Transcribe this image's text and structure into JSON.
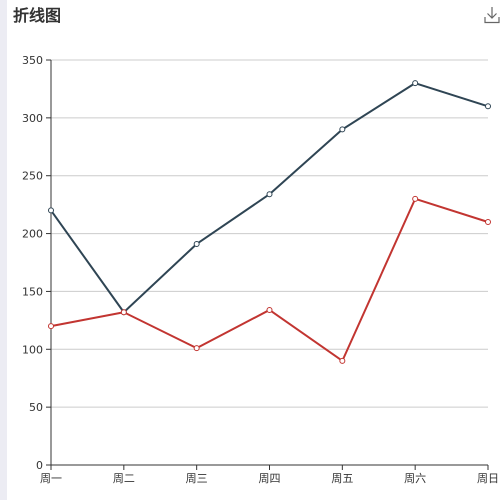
{
  "header": {
    "title": "折线图",
    "save_icon": "download-icon"
  },
  "chart_data": {
    "type": "line",
    "categories": [
      "周一",
      "周二",
      "周三",
      "周四",
      "周五",
      "周六",
      "周日"
    ],
    "series": [
      {
        "color": "#2f4554",
        "values": [
          220,
          132,
          191,
          234,
          290,
          330,
          310
        ]
      },
      {
        "color": "#c23531",
        "values": [
          120,
          132,
          101,
          134,
          90,
          230,
          210
        ]
      }
    ],
    "ylim": [
      0,
      350
    ],
    "yticks": [
      0,
      50,
      100,
      150,
      200,
      250,
      300,
      350
    ],
    "grid": true,
    "title": "折线图"
  }
}
